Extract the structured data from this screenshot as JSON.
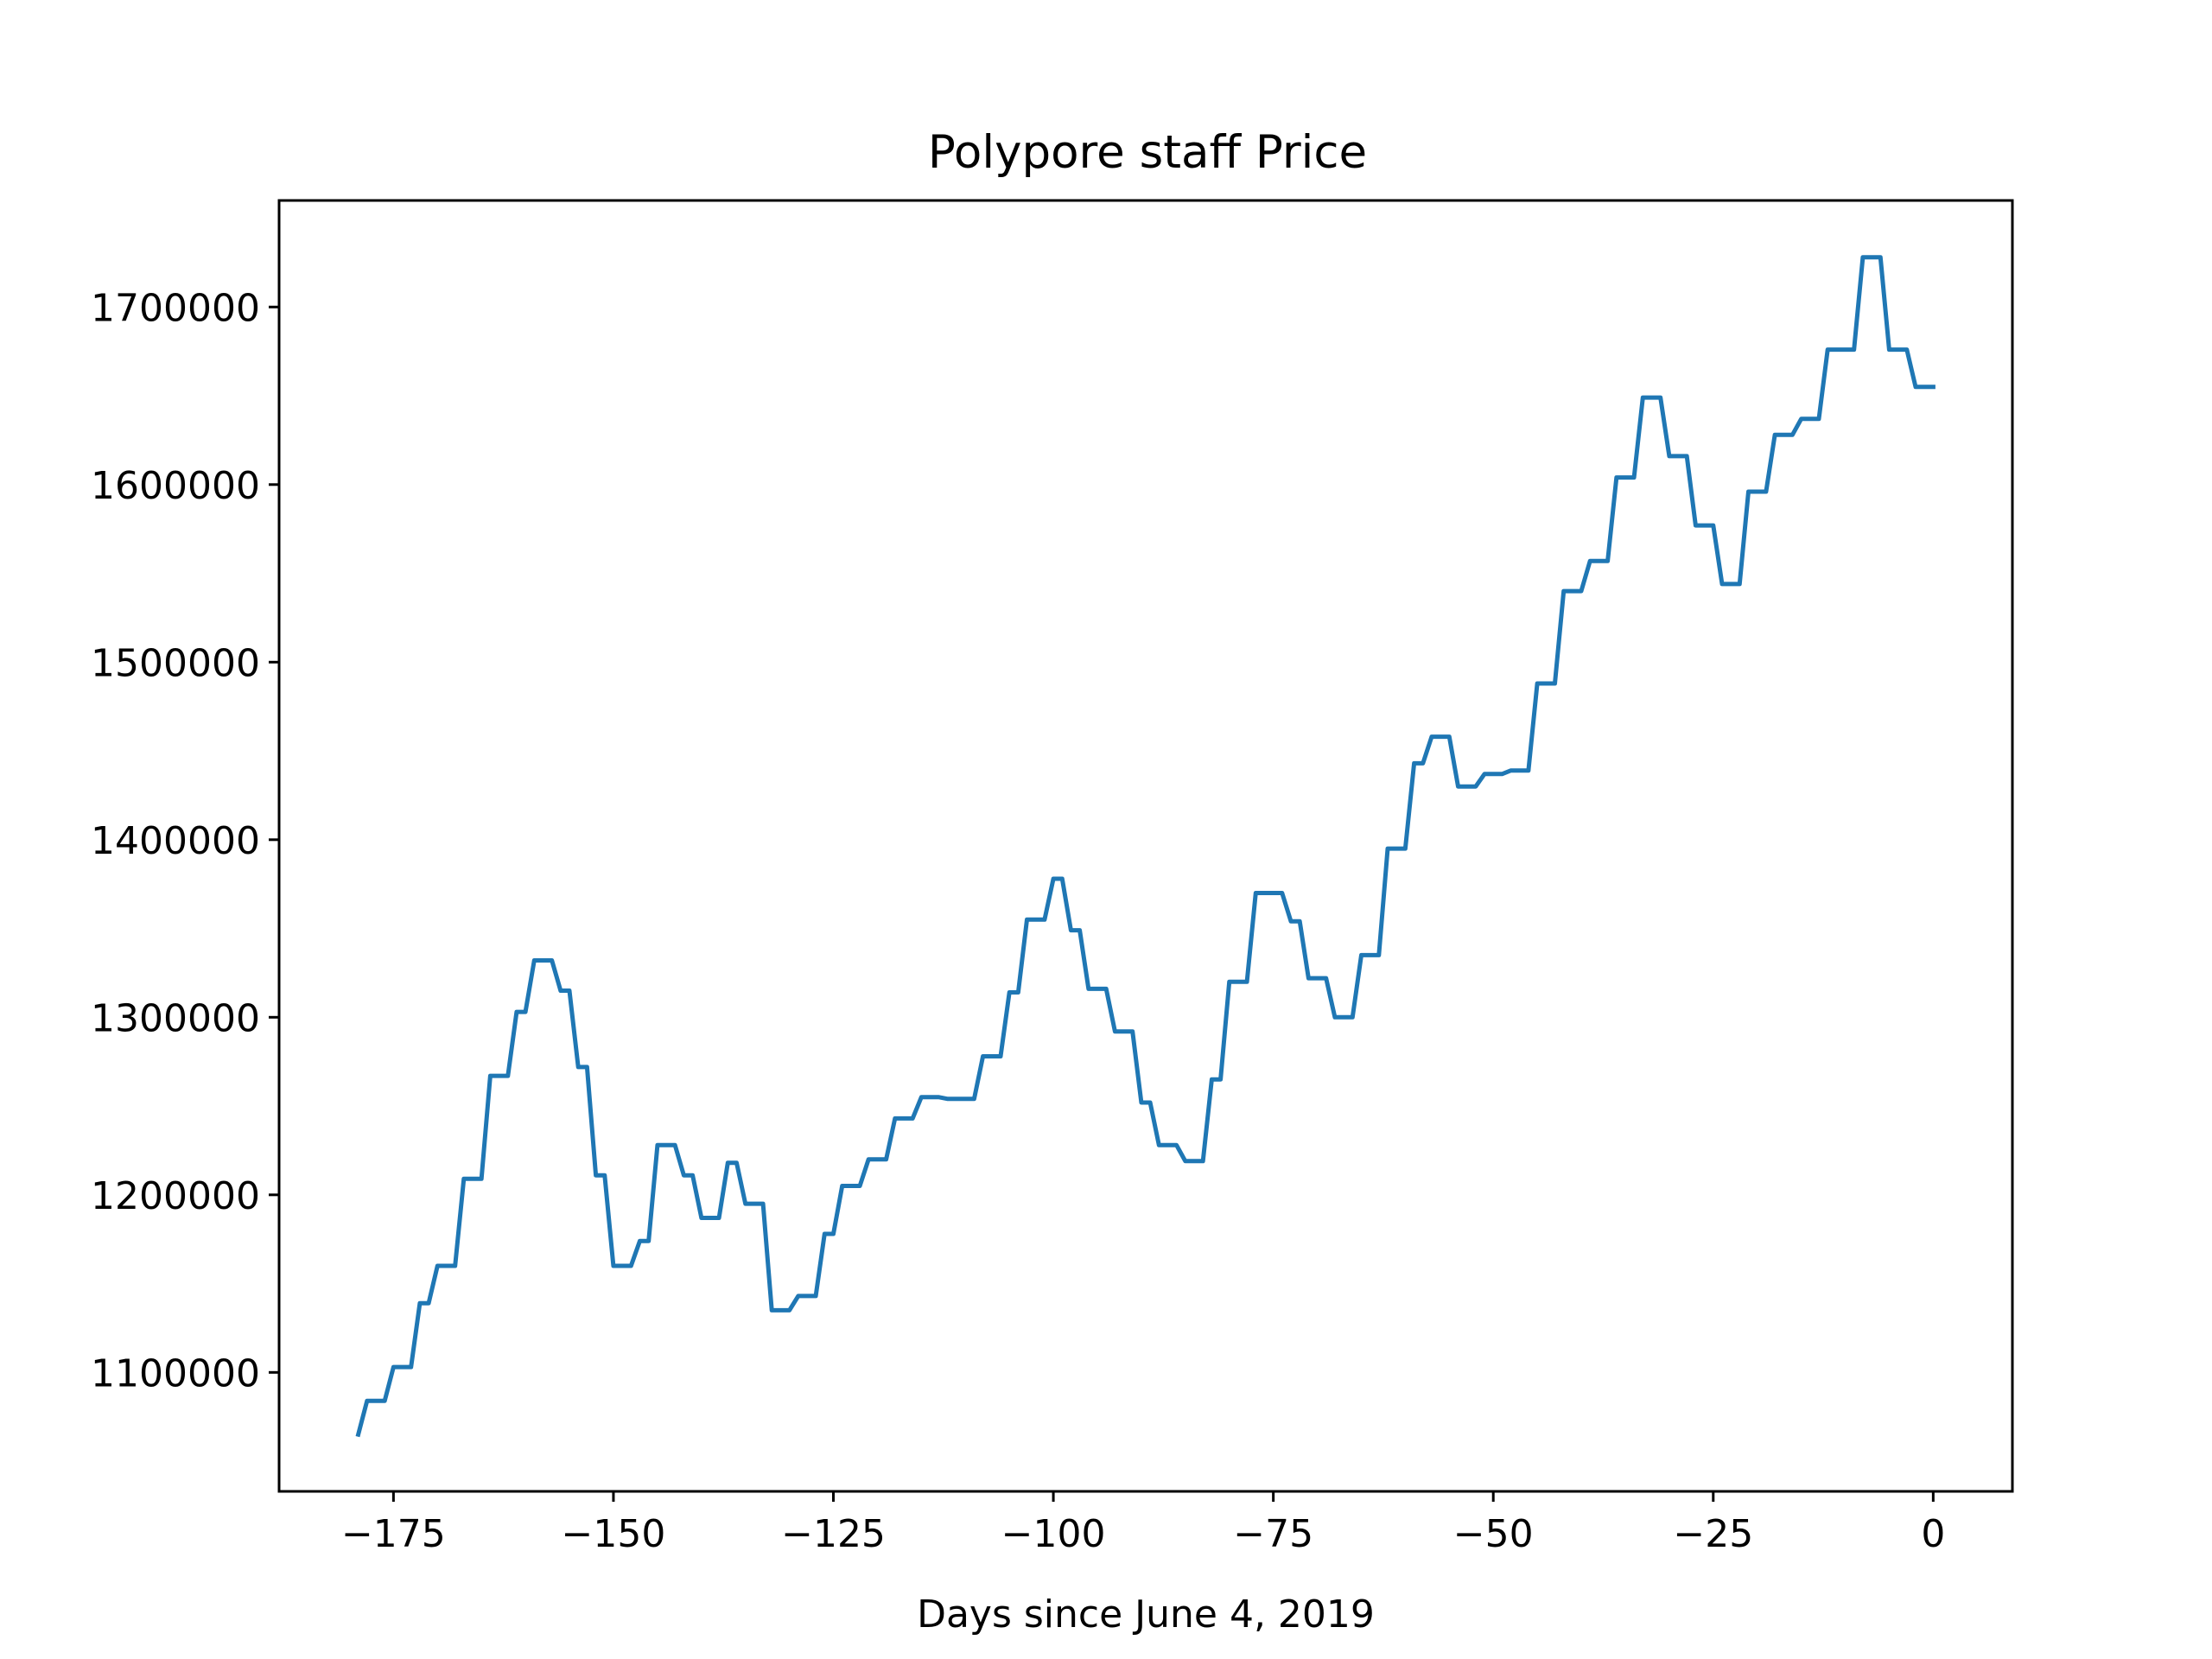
{
  "chart_data": {
    "type": "line",
    "title": "Polypore staff Price",
    "xlabel": "Days since June 4, 2019",
    "ylabel": "",
    "xlim": [
      -188,
      9
    ],
    "ylim": [
      1033000,
      1760000
    ],
    "xticks": [
      -175,
      -150,
      -125,
      -100,
      -75,
      -50,
      -25,
      0
    ],
    "xtick_labels": [
      "−175",
      "−150",
      "−125",
      "−100",
      "−75",
      "−50",
      "−25",
      "0"
    ],
    "yticks": [
      1100000,
      1200000,
      1300000,
      1400000,
      1500000,
      1600000,
      1700000
    ],
    "ytick_labels": [
      "1100000",
      "1200000",
      "1300000",
      "1400000",
      "1500000",
      "1600000",
      "1700000"
    ],
    "grid": false,
    "series": [
      {
        "color": "#1f77b4",
        "x": [
          -179,
          -178,
          -177,
          -176,
          -175,
          -174,
          -173,
          -172,
          -171,
          -170,
          -169,
          -168,
          -167,
          -166,
          -165,
          -164,
          -163,
          -162,
          -161,
          -160,
          -159,
          -158,
          -157,
          -156,
          -155,
          -154,
          -153,
          -152,
          -151,
          -150,
          -149,
          -148,
          -147,
          -146,
          -145,
          -144,
          -143,
          -142,
          -141,
          -140,
          -139,
          -138,
          -137,
          -136,
          -135,
          -134,
          -133,
          -132,
          -131,
          -130,
          -129,
          -128,
          -127,
          -126,
          -125,
          -124,
          -123,
          -122,
          -121,
          -120,
          -119,
          -118,
          -117,
          -116,
          -115,
          -114,
          -113,
          -112,
          -111,
          -110,
          -109,
          -108,
          -107,
          -106,
          -105,
          -104,
          -103,
          -102,
          -101,
          -100,
          -99,
          -98,
          -97,
          -96,
          -95,
          -94,
          -93,
          -92,
          -91,
          -90,
          -89,
          -88,
          -87,
          -86,
          -85,
          -84,
          -83,
          -82,
          -81,
          -80,
          -79,
          -78,
          -77,
          -76,
          -75,
          -74,
          -73,
          -72,
          -71,
          -70,
          -69,
          -68,
          -67,
          -66,
          -65,
          -64,
          -63,
          -62,
          -61,
          -60,
          -59,
          -58,
          -57,
          -56,
          -55,
          -54,
          -53,
          -52,
          -51,
          -50,
          -49,
          -48,
          -47,
          -46,
          -45,
          -44,
          -43,
          -42,
          -41,
          -40,
          -39,
          -38,
          -37,
          -36,
          -35,
          -34,
          -33,
          -32,
          -31,
          -30,
          -29,
          -28,
          -27,
          -26,
          -25,
          -24,
          -23,
          -22,
          -21,
          -20,
          -19,
          -18,
          -17,
          -16,
          -15,
          -14,
          -13,
          -12,
          -11,
          -10,
          -9,
          -8,
          -7,
          -6,
          -5,
          -4,
          -3,
          -2,
          -1,
          0
        ],
        "y": [
          1065000,
          1084000,
          1084000,
          1084000,
          1103000,
          1103000,
          1103000,
          1139000,
          1139000,
          1160000,
          1160000,
          1160000,
          1209000,
          1209000,
          1209000,
          1267000,
          1267000,
          1267000,
          1303000,
          1303000,
          1332000,
          1332000,
          1332000,
          1315000,
          1315000,
          1272000,
          1272000,
          1211000,
          1211000,
          1160000,
          1160000,
          1160000,
          1174000,
          1174000,
          1228000,
          1228000,
          1228000,
          1211000,
          1211000,
          1187000,
          1187000,
          1187000,
          1218000,
          1218000,
          1195000,
          1195000,
          1195000,
          1135000,
          1135000,
          1135000,
          1143000,
          1143000,
          1143000,
          1178000,
          1178000,
          1205000,
          1205000,
          1205000,
          1220000,
          1220000,
          1220000,
          1243000,
          1243000,
          1243000,
          1255000,
          1255000,
          1255000,
          1254000,
          1254000,
          1254000,
          1254000,
          1278000,
          1278000,
          1278000,
          1314000,
          1314000,
          1355000,
          1355000,
          1355000,
          1378000,
          1378000,
          1349000,
          1349000,
          1316000,
          1316000,
          1316000,
          1292000,
          1292000,
          1292000,
          1252000,
          1252000,
          1228000,
          1228000,
          1228000,
          1219000,
          1219000,
          1219000,
          1265000,
          1265000,
          1320000,
          1320000,
          1320000,
          1370000,
          1370000,
          1370000,
          1370000,
          1354000,
          1354000,
          1322000,
          1322000,
          1322000,
          1300000,
          1300000,
          1300000,
          1335000,
          1335000,
          1335000,
          1395000,
          1395000,
          1395000,
          1443000,
          1443000,
          1458000,
          1458000,
          1458000,
          1430000,
          1430000,
          1430000,
          1437000,
          1437000,
          1437000,
          1439000,
          1439000,
          1439000,
          1488000,
          1488000,
          1488000,
          1540000,
          1540000,
          1540000,
          1557000,
          1557000,
          1557000,
          1604000,
          1604000,
          1604000,
          1649000,
          1649000,
          1649000,
          1616000,
          1616000,
          1616000,
          1577000,
          1577000,
          1577000,
          1544000,
          1544000,
          1544000,
          1596000,
          1596000,
          1596000,
          1628000,
          1628000,
          1628000,
          1637000,
          1637000,
          1637000,
          1676000,
          1676000,
          1676000,
          1676000,
          1728000,
          1728000,
          1728000,
          1676000,
          1676000,
          1676000,
          1655000,
          1655000,
          1655000
        ]
      }
    ]
  }
}
